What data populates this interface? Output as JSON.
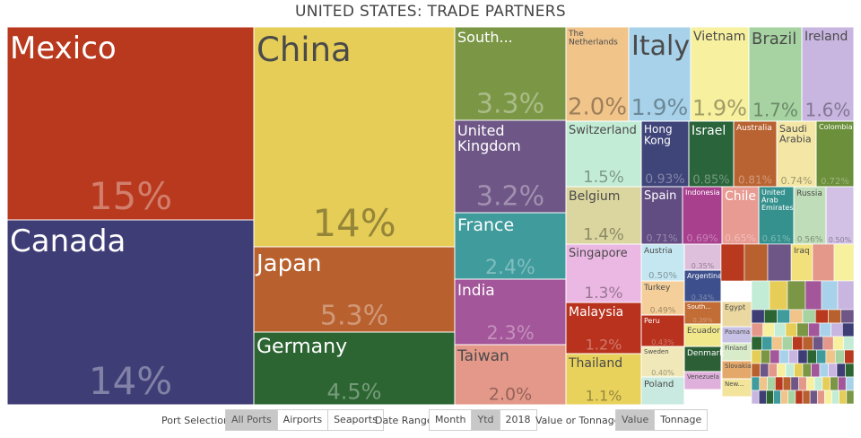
{
  "chart_data": {
    "type": "treemap",
    "title": "UNITED STATES: TRADE PARTNERS",
    "tiles": [
      {
        "name": "Mexico",
        "value": "15%",
        "color": "#b8391d"
      },
      {
        "name": "Canada",
        "value": "14%",
        "color": "#3f3d76"
      },
      {
        "name": "China",
        "value": "14%",
        "color": "#e5cd57"
      },
      {
        "name": "Japan",
        "value": "5.3%",
        "color": "#b8612f"
      },
      {
        "name": "Germany",
        "value": "4.5%",
        "color": "#2c6532"
      },
      {
        "name": "South...",
        "value": "3.3%",
        "color": "#7b9746"
      },
      {
        "name": "United Kingdom",
        "value": "3.2%",
        "color": "#6e5686"
      },
      {
        "name": "France",
        "value": "2.4%",
        "color": "#3f9b9c"
      },
      {
        "name": "India",
        "value": "2.3%",
        "color": "#a35699"
      },
      {
        "name": "Taiwan",
        "value": "2.0%",
        "color": "#e49889"
      },
      {
        "name": "The Netherlands",
        "value": "2.0%",
        "color": "#f1c48a"
      },
      {
        "name": "Italy",
        "value": "1.9%",
        "color": "#a8d2ea"
      },
      {
        "name": "Vietnam",
        "value": "1.9%",
        "color": "#f6f09f"
      },
      {
        "name": "Brazil",
        "value": "1.7%",
        "color": "#a6d3a1"
      },
      {
        "name": "Ireland",
        "value": "1.6%",
        "color": "#c8b6e1"
      },
      {
        "name": "Switzerland",
        "value": "1.5%",
        "color": "#c3ecd6"
      },
      {
        "name": "Hong Kong",
        "value": "0.93%",
        "color": "#3f4479"
      },
      {
        "name": "Israel",
        "value": "0.85%",
        "color": "#29643a"
      },
      {
        "name": "Australia",
        "value": "0.81%",
        "color": "#b96332"
      },
      {
        "name": "Saudi Arabia",
        "value": "0.74%",
        "color": "#f4e7a6"
      },
      {
        "name": "Colombia",
        "value": "0.72%",
        "color": "#6b8f3a"
      },
      {
        "name": "Belgium",
        "value": "1.4%",
        "color": "#dbd69f"
      },
      {
        "name": "Spain",
        "value": "0.71%",
        "color": "#614d82"
      },
      {
        "name": "Indonesia",
        "value": "0.69%",
        "color": "#a9408e"
      },
      {
        "name": "Chile",
        "value": "0.65%",
        "color": "#e89b93"
      },
      {
        "name": "United Arab Emirates",
        "value": "0.61%",
        "color": "#35918e"
      },
      {
        "name": "Russia",
        "value": "0.56%",
        "color": "#bfddb8"
      },
      {
        "name": "",
        "value": "0.50%",
        "color": "#d2c1e5"
      },
      {
        "name": "Singapore",
        "value": "1.3%",
        "color": "#ebb7e3"
      },
      {
        "name": "Malaysia",
        "value": "1.2%",
        "color": "#b8321d"
      },
      {
        "name": "Thailand",
        "value": "1.1%",
        "color": "#e8d25c"
      },
      {
        "name": "Austria",
        "value": "0.50%",
        "color": "#c5e7f1"
      },
      {
        "name": "",
        "value": "0.35%",
        "color": "#dfc0dc"
      },
      {
        "name": "Argentina",
        "value": "0.34%",
        "color": "#3d4f8c"
      },
      {
        "name": "Turkey",
        "value": "0.49%",
        "color": "#f4cf99"
      },
      {
        "name": "South...",
        "value": "0.39%",
        "color": "#c26c36"
      },
      {
        "name": "Peru",
        "value": "0.43%",
        "color": "#b8321d"
      },
      {
        "name": "Egypt",
        "value": "",
        "color": "#ead8a0"
      },
      {
        "name": "Ecuador",
        "value": "",
        "color": "#f1e88b"
      },
      {
        "name": "Panama",
        "value": "",
        "color": "#c7c1e5"
      },
      {
        "name": "Sweden",
        "value": "0.40%",
        "color": "#f0e8b9"
      },
      {
        "name": "Finland",
        "value": "",
        "color": "#d9ecc9"
      },
      {
        "name": "Denmark",
        "value": "",
        "color": "#2c5f36"
      },
      {
        "name": "Slovakia",
        "value": "",
        "color": "#e4a96a"
      },
      {
        "name": "Poland",
        "value": "",
        "color": "#c8eae0"
      },
      {
        "name": "Venezuela",
        "value": "",
        "color": "#e0b0dc"
      },
      {
        "name": "New...",
        "value": "",
        "color": "#f3e49b"
      },
      {
        "name": "Iraq",
        "value": "",
        "color": "#f1e07c"
      }
    ]
  },
  "controls": {
    "port_selection": {
      "label": "Port Selection",
      "options": [
        "All Ports",
        "Airports",
        "Seaports"
      ],
      "active": 0
    },
    "date_range": {
      "label": "Date Range",
      "options": [
        "Month",
        "Ytd",
        "2018"
      ],
      "active": 1
    },
    "value_or_tonnage": {
      "label": "Value or Tonnage",
      "options": [
        "Value",
        "Tonnage"
      ],
      "active": 0
    }
  }
}
